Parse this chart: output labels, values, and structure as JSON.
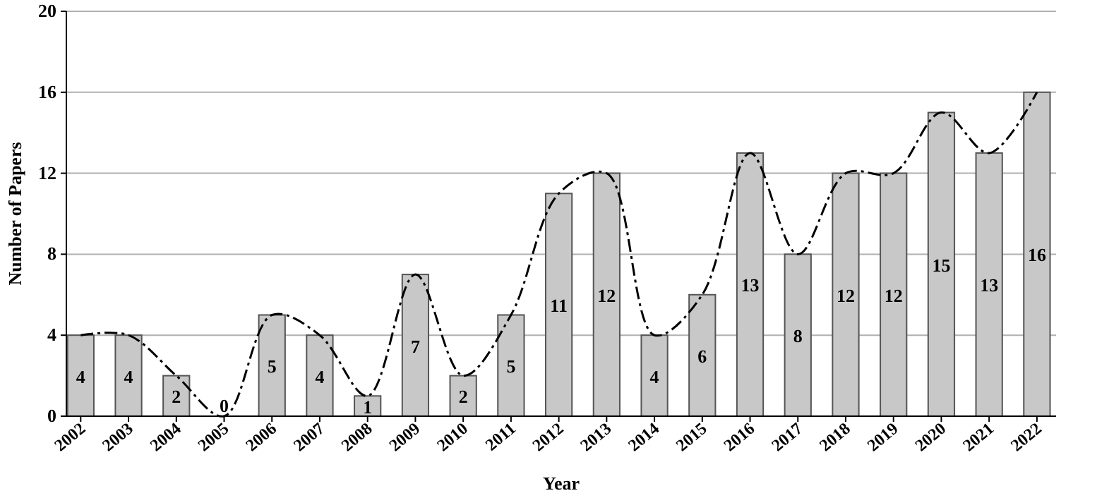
{
  "chart_data": {
    "type": "bar",
    "xlabel": "Year",
    "ylabel": "Number of Papers",
    "categories": [
      "2002",
      "2003",
      "2004",
      "2005",
      "2006",
      "2007",
      "2008",
      "2009",
      "2010",
      "2011",
      "2012",
      "2013",
      "2014",
      "2015",
      "2016",
      "2017",
      "2018",
      "2019",
      "2020",
      "2021",
      "2022"
    ],
    "series": [
      {
        "color": "#c8c8c8",
        "values": [
          4,
          4,
          2,
          0,
          5,
          4,
          1,
          7,
          2,
          5,
          11,
          12,
          4,
          6,
          13,
          8,
          12,
          12,
          15,
          13,
          16
        ],
        "value_labels": [
          "4",
          "4",
          "2",
          "0",
          "5",
          "4",
          "1",
          "7",
          "2",
          "5",
          "11",
          "12",
          "4",
          "6",
          "13",
          "8",
          "12",
          "12",
          "15",
          "13",
          "16"
        ]
      },
      {
        "type": "line",
        "color": "#000000",
        "line_style": "dashed",
        "values": [
          4,
          4,
          2,
          0,
          5,
          4,
          1,
          7,
          2,
          5,
          11,
          12,
          4,
          6,
          13,
          8,
          12,
          12,
          15,
          13,
          16
        ]
      }
    ],
    "ylim": [
      0,
      20
    ],
    "yticks": [
      0,
      4,
      8,
      12,
      16,
      20
    ],
    "grid": "y"
  }
}
